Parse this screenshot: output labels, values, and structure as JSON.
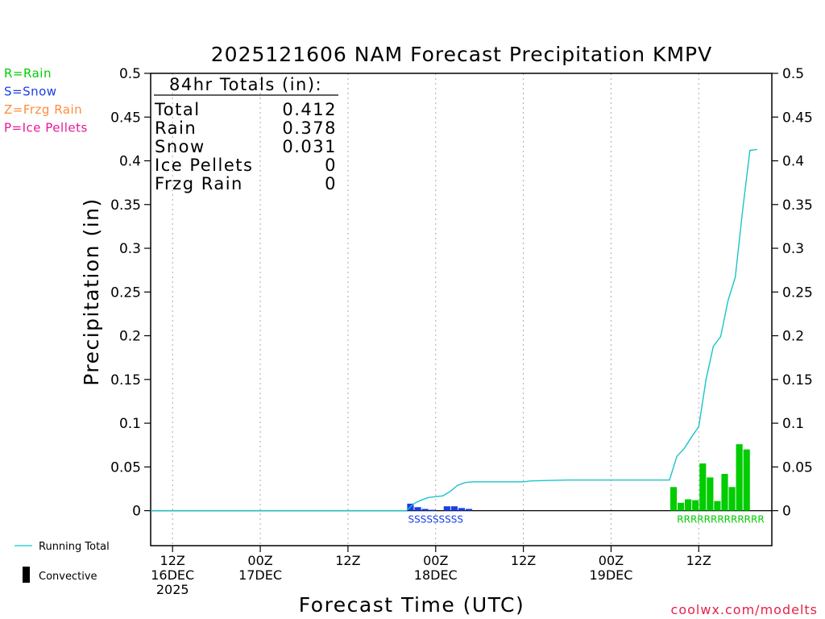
{
  "chart_data": {
    "type": "bar",
    "title": "2025121606 NAM Forecast Precipitation KMPV",
    "xlabel": "Forecast Time (UTC)",
    "ylabel": "Precipitation (in)",
    "ylim": [
      -0.04,
      0.5
    ],
    "xlim_hours": [
      3,
      88
    ],
    "yticks": [
      "0",
      "0.05",
      "0.1",
      "0.15",
      "0.2",
      "0.25",
      "0.3",
      "0.35",
      "0.4",
      "0.45",
      "0.5"
    ],
    "ytick_values": [
      0,
      0.05,
      0.1,
      0.15,
      0.2,
      0.25,
      0.3,
      0.35,
      0.4,
      0.45,
      0.5
    ],
    "xticks": [
      {
        "hour": 6,
        "line1": "12Z",
        "line2": "16DEC",
        "line3": "2025"
      },
      {
        "hour": 18,
        "line1": "00Z",
        "line2": "17DEC",
        "line3": ""
      },
      {
        "hour": 30,
        "line1": "12Z",
        "line2": "",
        "line3": ""
      },
      {
        "hour": 42,
        "line1": "00Z",
        "line2": "18DEC",
        "line3": ""
      },
      {
        "hour": 54,
        "line1": "12Z",
        "line2": "",
        "line3": ""
      },
      {
        "hour": 66,
        "line1": "00Z",
        "line2": "19DEC",
        "line3": ""
      },
      {
        "hour": 78,
        "line1": "12Z",
        "line2": "",
        "line3": ""
      }
    ],
    "colors": {
      "rain": "#00cc00",
      "snow": "#1a3fe6",
      "frzg": "#ff8c3a",
      "ice": "#e6179a",
      "running_total": "#19c4c9",
      "convective": "#000000",
      "grid": "#aaaaaa",
      "footer": "#e6214a"
    },
    "series": [
      {
        "name": "S",
        "kind": "snow",
        "x": [
          39,
          40,
          41,
          42,
          43,
          44,
          45,
          46,
          47
        ],
        "values": [
          0.008,
          0.004,
          0.002,
          0.001,
          0.0,
          0.005,
          0.005,
          0.003,
          0.002
        ]
      },
      {
        "name": "R",
        "kind": "rain",
        "x": [
          75,
          76,
          77,
          78,
          79,
          80,
          81,
          82,
          83,
          84,
          85,
          86,
          87
        ],
        "values": [
          0.027,
          0.009,
          0.013,
          0.012,
          0.054,
          0.038,
          0.011,
          0.042,
          0.027,
          0.076,
          0.07,
          0.0,
          0.0
        ]
      }
    ],
    "running_total": {
      "name": "Running Total",
      "x": [
        3,
        38,
        39,
        40,
        41,
        42,
        43,
        44,
        45,
        46,
        47,
        54,
        55,
        60,
        73,
        74,
        75,
        76,
        77,
        78,
        79,
        80,
        81,
        82,
        83,
        84,
        85,
        86
      ],
      "values": [
        0,
        0,
        0.008,
        0.012,
        0.015,
        0.016,
        0.017,
        0.022,
        0.029,
        0.032,
        0.033,
        0.033,
        0.034,
        0.035,
        0.035,
        0.035,
        0.062,
        0.071,
        0.084,
        0.096,
        0.15,
        0.188,
        0.199,
        0.24,
        0.267,
        0.343,
        0.412,
        0.413
      ]
    },
    "precip_type_labels": [
      {
        "text": "SSSSSSSSS",
        "kind": "snow",
        "hour": 42
      },
      {
        "text": "RRRRRRRRRRRRR",
        "kind": "rain",
        "hour": 81
      }
    ]
  },
  "totals_box": {
    "heading": "84hr Totals (in):",
    "rows": [
      {
        "label": "Total",
        "value": "0.412"
      },
      {
        "label": "Rain",
        "value": "0.378"
      },
      {
        "label": "Snow",
        "value": "0.031"
      },
      {
        "label": "Ice Pellets",
        "value": "0"
      },
      {
        "label": "Frzg Rain",
        "value": "0"
      }
    ]
  },
  "type_legend": [
    {
      "text": "R=Rain",
      "kind": "rain"
    },
    {
      "text": "S=Snow",
      "kind": "snow"
    },
    {
      "text": "Z=Frzg Rain",
      "kind": "frzg"
    },
    {
      "text": "P=Ice Pellets",
      "kind": "ice"
    }
  ],
  "series_legend": {
    "running_total": "Running Total",
    "convective": "Convective"
  },
  "footer": "coolwx.com/modelts"
}
